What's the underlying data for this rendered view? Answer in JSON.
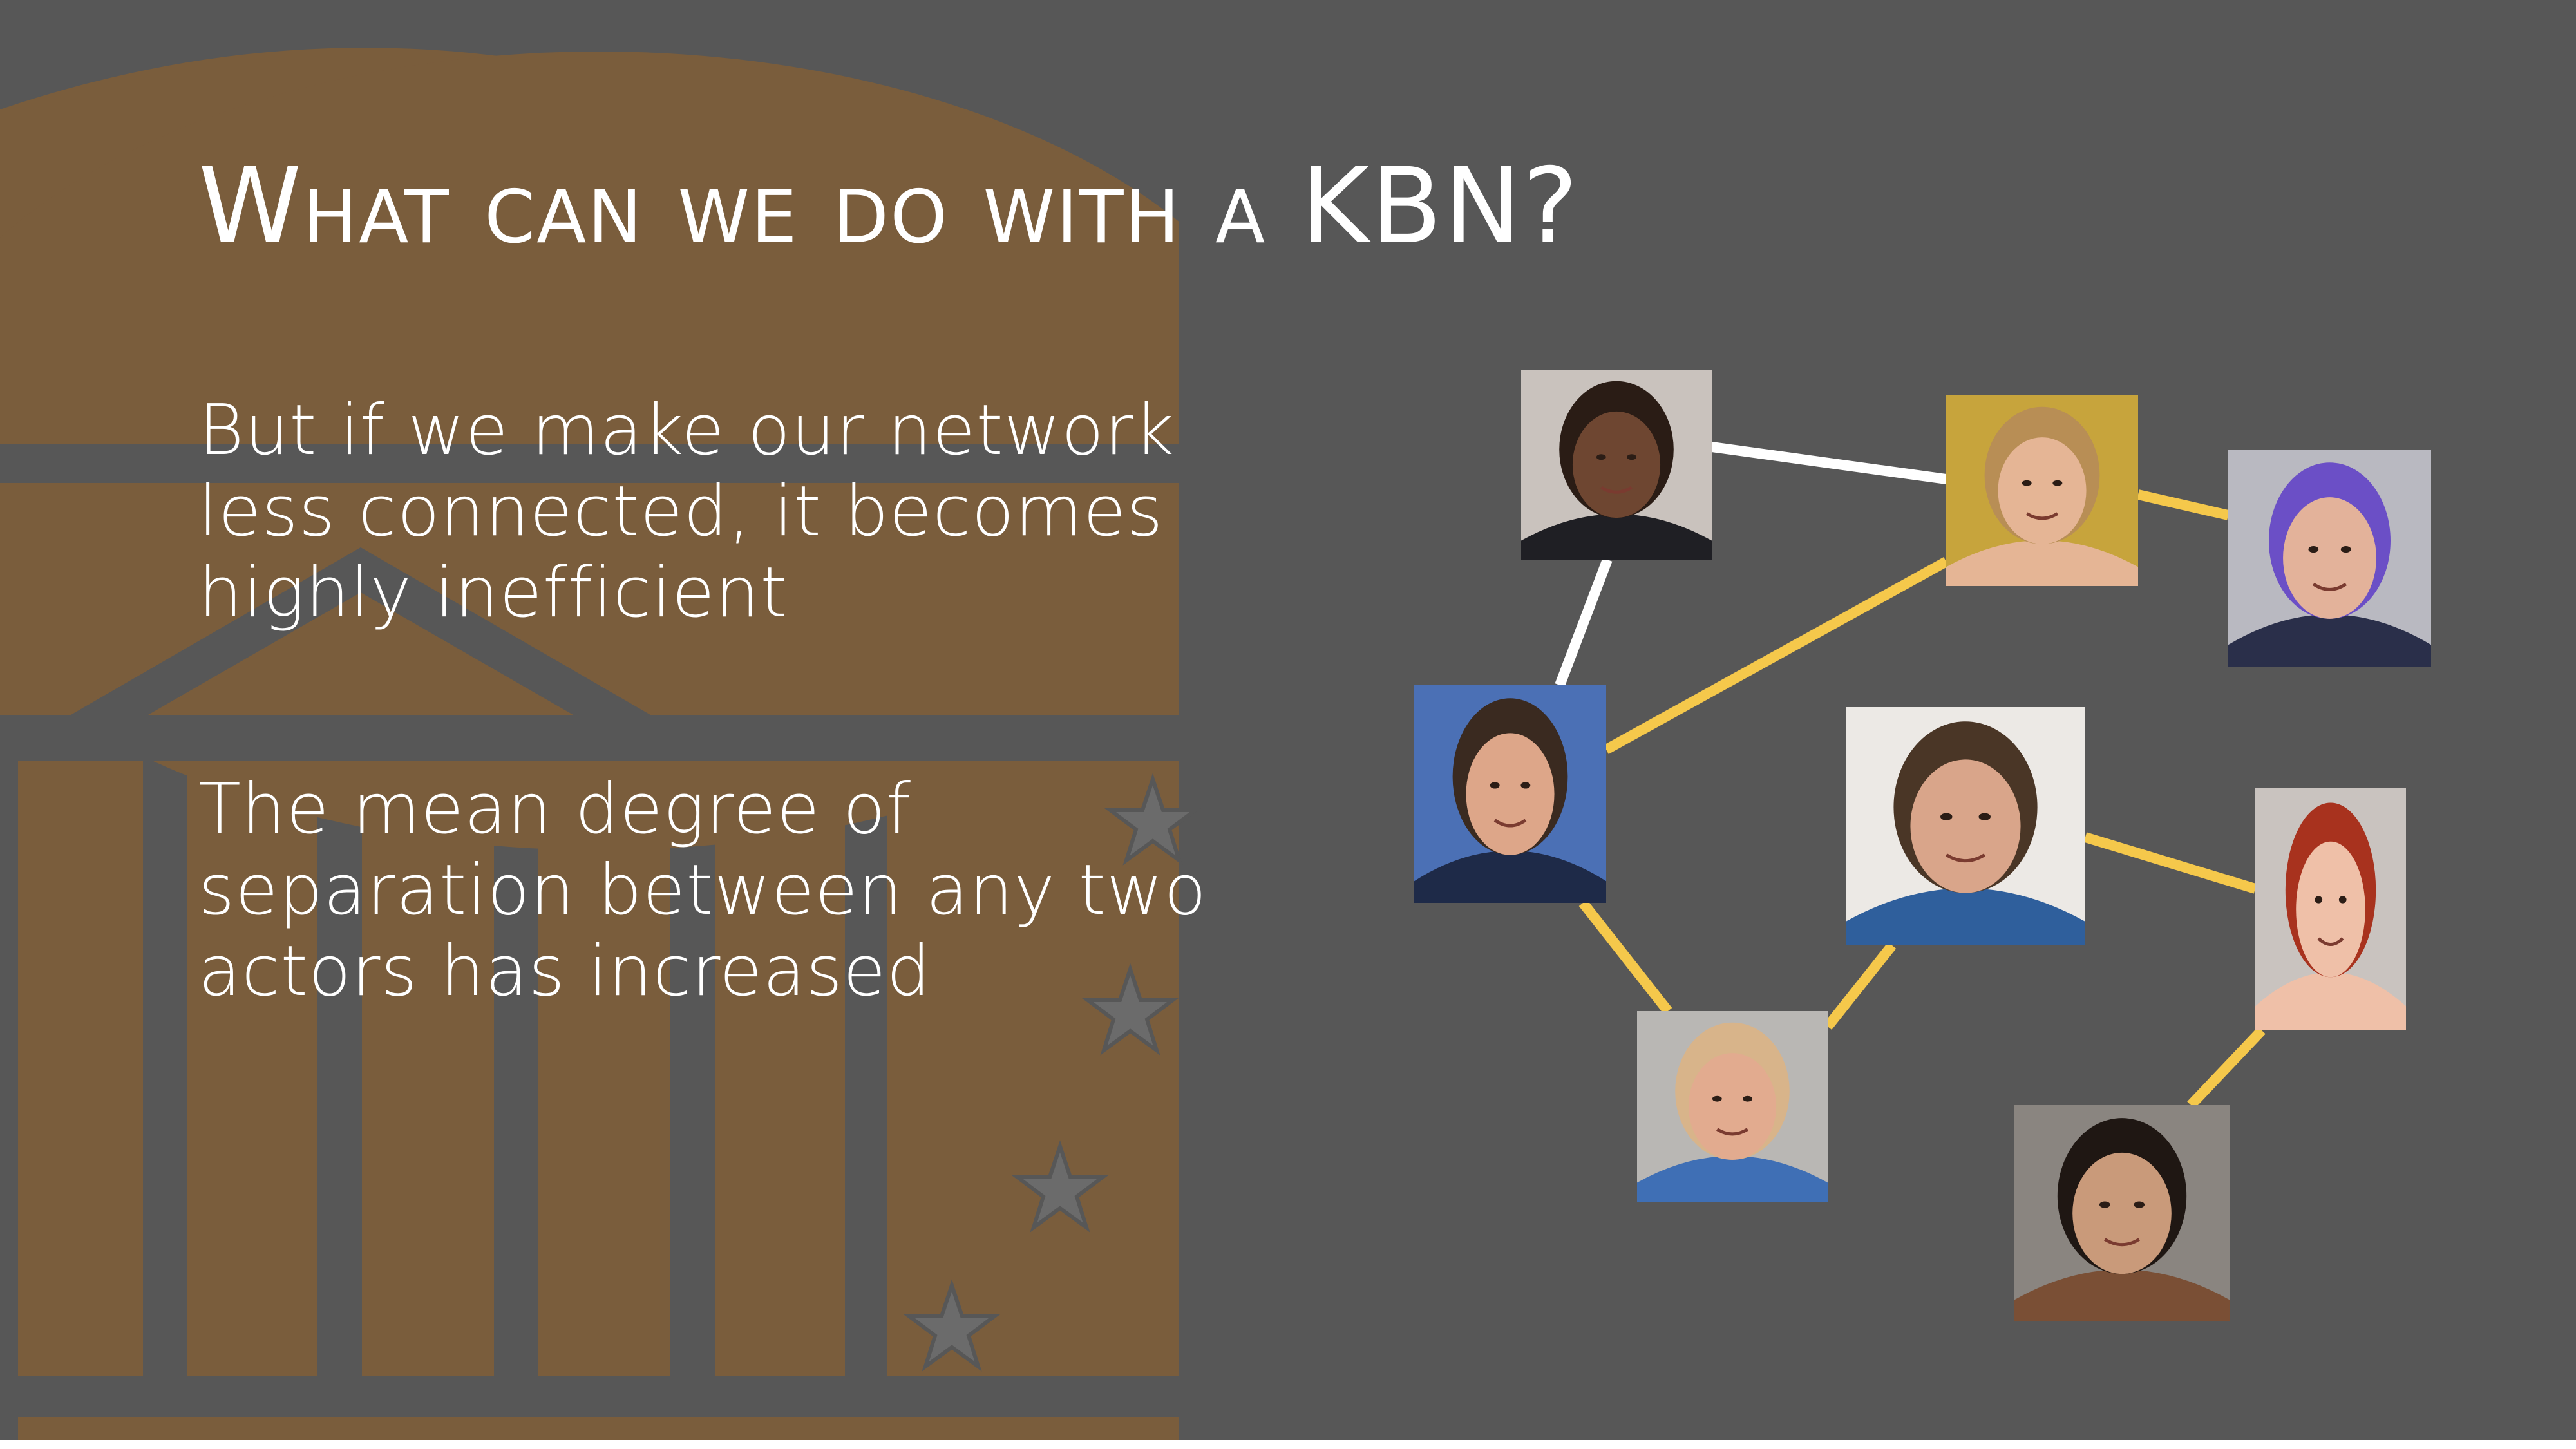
{
  "slide": {
    "title": "What can we do with a KBN?",
    "paragraphs": [
      {
        "lines": [
          "But if we make our network",
          "less connected, it becomes",
          "highly inefficient"
        ]
      },
      {
        "lines": [
          "The mean degree of",
          "separation between any two",
          "actors has increased"
        ]
      }
    ]
  },
  "colors": {
    "background": "#575757",
    "decor_bronze": "#7a5d3c",
    "edge_white": "#ffffff",
    "edge_gold": "#f5c84b"
  },
  "network": {
    "nodes": [
      {
        "id": "actor-1",
        "icon": "portrait-bald-man-suit"
      },
      {
        "id": "actor-2",
        "icon": "portrait-blonde-woman"
      },
      {
        "id": "actor-3",
        "icon": "portrait-man-purple-bandana"
      },
      {
        "id": "actor-4",
        "icon": "portrait-dark-hair-man-suit"
      },
      {
        "id": "actor-5",
        "icon": "portrait-man-denim-shirt"
      },
      {
        "id": "actor-6",
        "icon": "portrait-red-hair-woman"
      },
      {
        "id": "actor-7",
        "icon": "portrait-bald-man-blue-shirt"
      },
      {
        "id": "actor-8",
        "icon": "portrait-curly-hair-woman"
      }
    ],
    "edges": [
      {
        "from": "actor-1",
        "to": "actor-2",
        "color": "white"
      },
      {
        "from": "actor-1",
        "to": "actor-4",
        "color": "white"
      },
      {
        "from": "actor-2",
        "to": "actor-3",
        "color": "gold"
      },
      {
        "from": "actor-2",
        "to": "actor-4",
        "color": "gold"
      },
      {
        "from": "actor-4",
        "to": "actor-7",
        "color": "gold"
      },
      {
        "from": "actor-7",
        "to": "actor-5",
        "color": "gold"
      },
      {
        "from": "actor-5",
        "to": "actor-6",
        "color": "gold"
      },
      {
        "from": "actor-6",
        "to": "actor-8",
        "color": "gold"
      }
    ]
  }
}
